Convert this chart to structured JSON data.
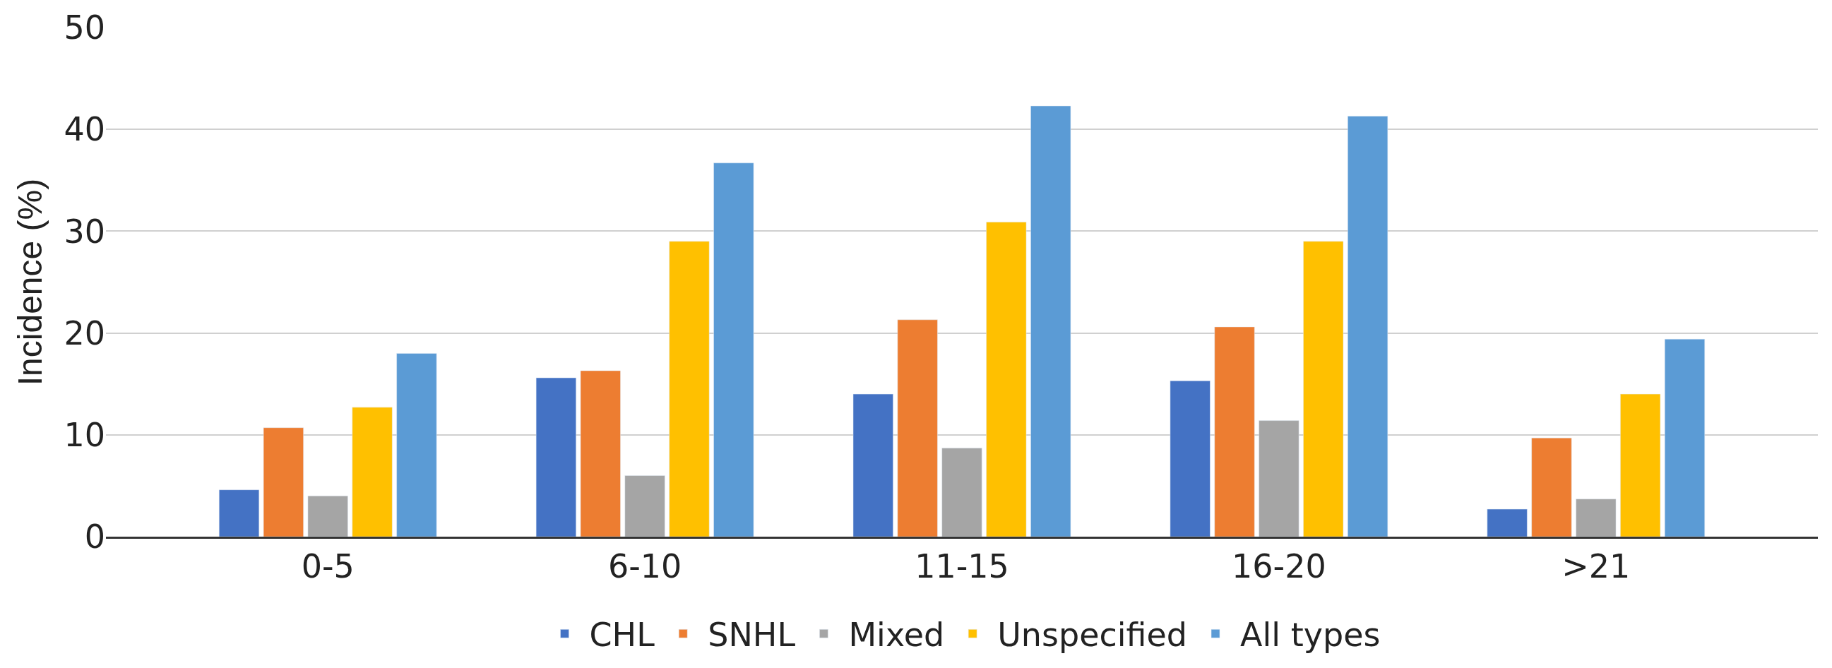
{
  "chart_data": {
    "type": "bar",
    "ylabel": "Incidence (%)",
    "categories": [
      "0-5",
      "6-10",
      "11-15",
      "16-20",
      ">21"
    ],
    "series": [
      {
        "name": "CHL",
        "color": "#4472c4",
        "values": [
          4.6,
          15.6,
          14.0,
          15.3,
          2.7
        ]
      },
      {
        "name": "SNHL",
        "color": "#ed7d31",
        "values": [
          10.7,
          16.3,
          21.3,
          20.6,
          9.7
        ]
      },
      {
        "name": "Mixed",
        "color": "#a5a5a5",
        "values": [
          4.0,
          6.0,
          8.7,
          11.4,
          3.7
        ]
      },
      {
        "name": "Unspecified",
        "color": "#ffc000",
        "values": [
          12.7,
          29.0,
          30.9,
          29.0,
          14.0
        ]
      },
      {
        "name": "All types",
        "color": "#5b9bd5",
        "values": [
          18.0,
          36.7,
          42.3,
          41.3,
          19.4
        ]
      }
    ],
    "ylim": [
      0,
      50
    ],
    "yticks": [
      0,
      10,
      20,
      30,
      40,
      50
    ],
    "grid": "y",
    "legend": "bottom"
  }
}
